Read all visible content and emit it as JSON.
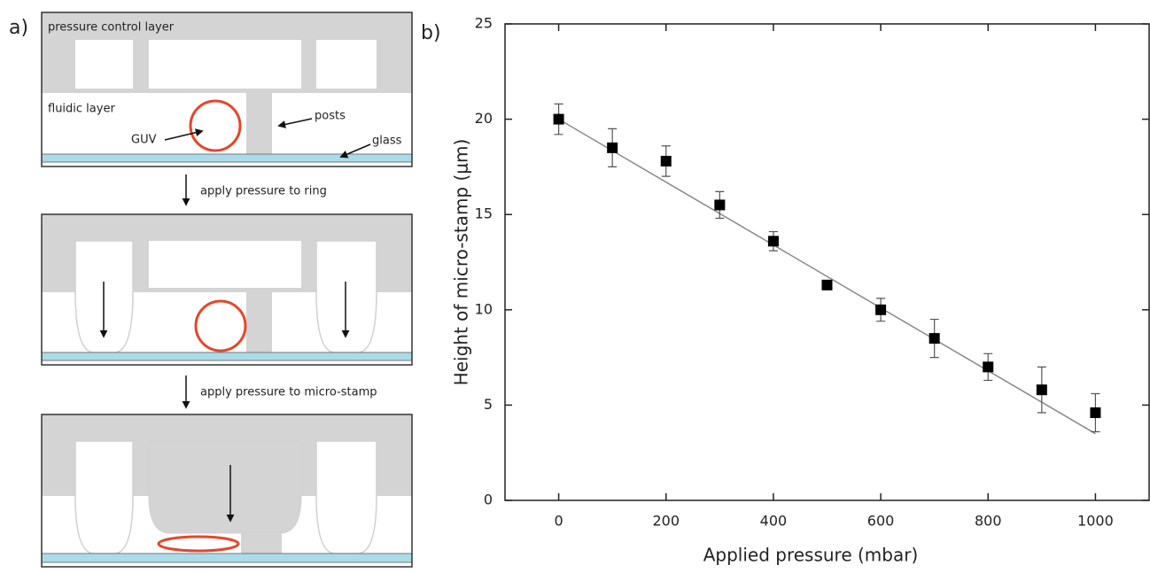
{
  "panel_labels": [
    "a)",
    "b)"
  ],
  "diagram": {
    "box1": {
      "pressure_layer": "pressure control layer",
      "fluidic_layer": "fluidic layer",
      "guv": "GUV",
      "posts": "posts",
      "glass": "glass"
    },
    "steps": [
      "apply pressure to ring",
      "apply pressure to micro-stamp"
    ]
  },
  "chart_data": {
    "type": "scatter",
    "x_label": "Applied pressure (mbar)",
    "y_label": "Height of micro-stamp (μm)",
    "x": [
      0,
      100,
      200,
      300,
      400,
      500,
      600,
      700,
      800,
      900,
      1000
    ],
    "series": [
      {
        "color": "#000000",
        "values": [
          20,
          18.5,
          17.8,
          15.5,
          13.6,
          11.3,
          10,
          8.5,
          7,
          5.8,
          4.6
        ],
        "errors": [
          0.8,
          1.0,
          0.8,
          0.7,
          0.5,
          0.2,
          0.6,
          1.0,
          0.7,
          1.2,
          1.0
        ]
      }
    ],
    "fit": {
      "x": [
        0,
        1000
      ],
      "values": [
        20,
        3.5
      ],
      "color": "#888888"
    },
    "xlim": [
      -100,
      1100
    ],
    "ylim": [
      0,
      25
    ],
    "xticks": [
      0,
      200,
      400,
      600,
      800,
      1000
    ],
    "yticks": [
      0,
      5,
      10,
      15,
      20,
      25
    ]
  }
}
